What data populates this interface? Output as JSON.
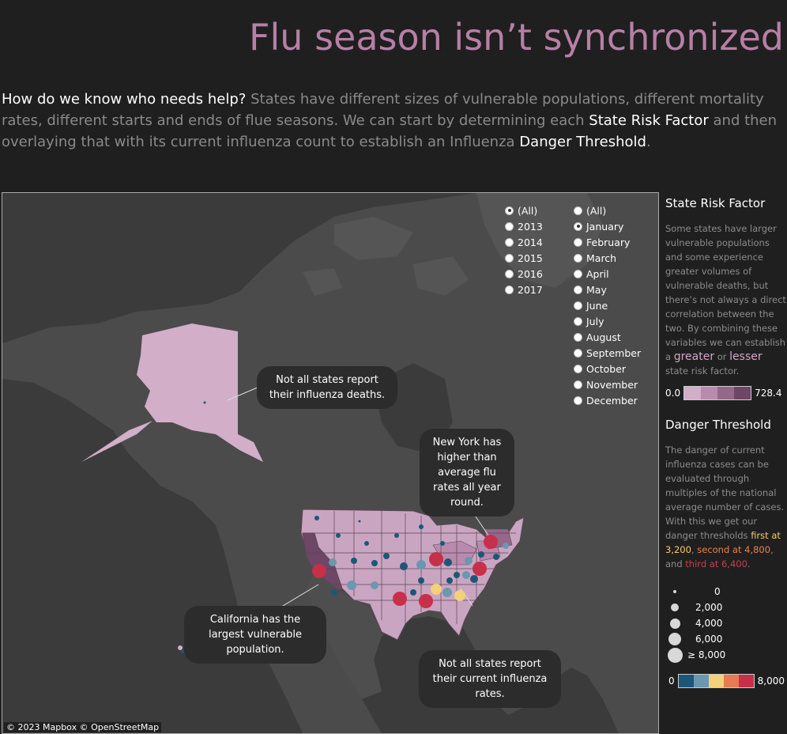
{
  "title": "Flu season isn’t synchronized",
  "intro": {
    "q": "How do we know who needs help?",
    "t1": " States have different sizes of vulnerable populations, different mortality rates, different starts and ends of flue seasons. We can start by determining each ",
    "h1": "State Risk Factor",
    "t2": " and then overlaying that with its current influenza count to establish an Influenza ",
    "h2": "Danger Threshold",
    "t3": "."
  },
  "year_filter": [
    {
      "label": "(All)",
      "selected": true
    },
    {
      "label": "2013",
      "selected": false
    },
    {
      "label": "2014",
      "selected": false
    },
    {
      "label": "2015",
      "selected": false
    },
    {
      "label": "2016",
      "selected": false
    },
    {
      "label": "2017",
      "selected": false
    }
  ],
  "month_filter": [
    {
      "label": "(All)",
      "selected": false
    },
    {
      "label": "January",
      "selected": true
    },
    {
      "label": "February",
      "selected": false
    },
    {
      "label": "March",
      "selected": false
    },
    {
      "label": "April",
      "selected": false
    },
    {
      "label": "May",
      "selected": false
    },
    {
      "label": "June",
      "selected": false
    },
    {
      "label": "July",
      "selected": false
    },
    {
      "label": "August",
      "selected": false
    },
    {
      "label": "September",
      "selected": false
    },
    {
      "label": "October",
      "selected": false
    },
    {
      "label": "November",
      "selected": false
    },
    {
      "label": "December",
      "selected": false
    }
  ],
  "callouts": {
    "alaska": "Not all states report their influenza deaths.",
    "newyork": "New York has higher than average flu rates all year round.",
    "california": "California has the largest vulnerable population.",
    "south": "Not all states report their current influenza rates."
  },
  "attribution": "© 2023 Mapbox  © OpenStreetMap",
  "risk": {
    "heading": "State Risk Factor",
    "text1": "Some states have larger vulnerable populations and some experience greater volumes of vulnerable deaths, but there’s not always a direct correlation between the two. By combining these variables we can establish a ",
    "greater": "greater",
    "or": " or ",
    "lesser": "lesser",
    "text2": " state risk factor.",
    "min": "0.0",
    "max": "728.4",
    "colors": [
      "#d2aec9",
      "#b98aae",
      "#956889",
      "#6e4767"
    ]
  },
  "danger": {
    "heading": "Danger Threshold",
    "text1": "The danger of current influenza cases can be evaluated through multiples of the national average number of cases. With this we get our danger thresholds ",
    "first": "first at 3,200",
    "sep1": ", ",
    "second": "second at 4,800",
    "sep2": ", and ",
    "third": "third at 6,400",
    "text2": ".",
    "sizes": [
      "0",
      "2,000",
      "4,000",
      "6,000",
      "≥ 8,000"
    ],
    "min": "0",
    "max": "8,000",
    "colors": [
      "#1d5778",
      "#6b97b0",
      "#f3d07a",
      "#e67a52",
      "#c63048"
    ]
  }
}
